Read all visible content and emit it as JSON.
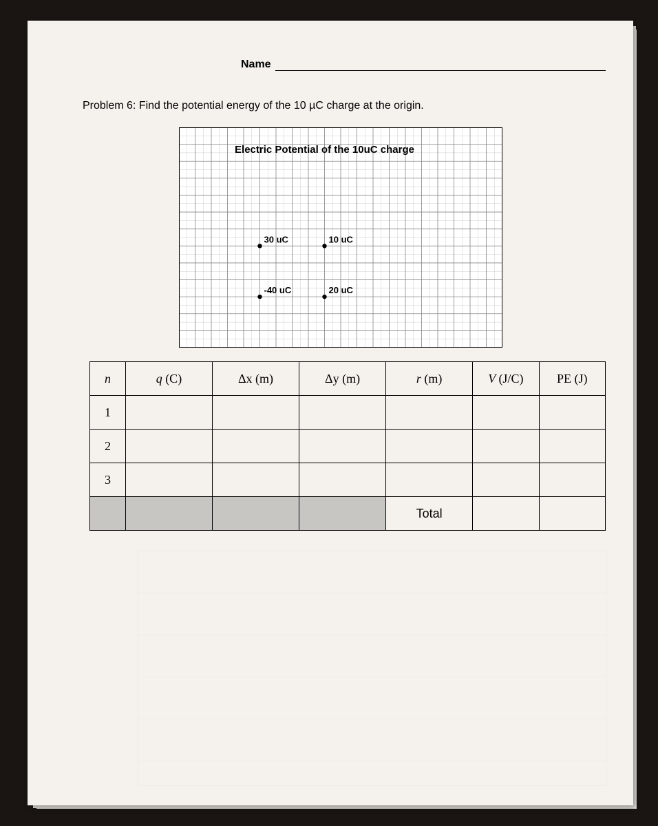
{
  "name_label": "Name",
  "problem_text": "Problem 6: Find the potential energy of the 10 µC charge at the origin.",
  "chart": {
    "title": "Electric Potential of  the 10uC charge",
    "grid_major_color": "#8a8a8a",
    "grid_minor_color": "#c0c0c0",
    "background": "#ffffff",
    "points": [
      {
        "label": "30 uC",
        "gx": 4,
        "gy": 4
      },
      {
        "label": "10 uC",
        "gx": 8,
        "gy": 4
      },
      {
        "label": "-40 uC",
        "gx": 4,
        "gy": 7
      },
      {
        "label": "20 uC",
        "gx": 8,
        "gy": 7
      }
    ],
    "grid_cols": 20,
    "grid_rows": 13
  },
  "table": {
    "headers": {
      "n": "n",
      "q": "q",
      "q_unit": "(C)",
      "dx": "Δx",
      "dx_unit": "(m)",
      "dy": "Δy",
      "dy_unit": "(m)",
      "r": "r",
      "r_unit": "(m)",
      "v": "V",
      "v_unit": "(J/C)",
      "pe": "PE",
      "pe_unit": "(J)"
    },
    "rows": [
      "1",
      "2",
      "3"
    ],
    "total_label": "Total"
  }
}
